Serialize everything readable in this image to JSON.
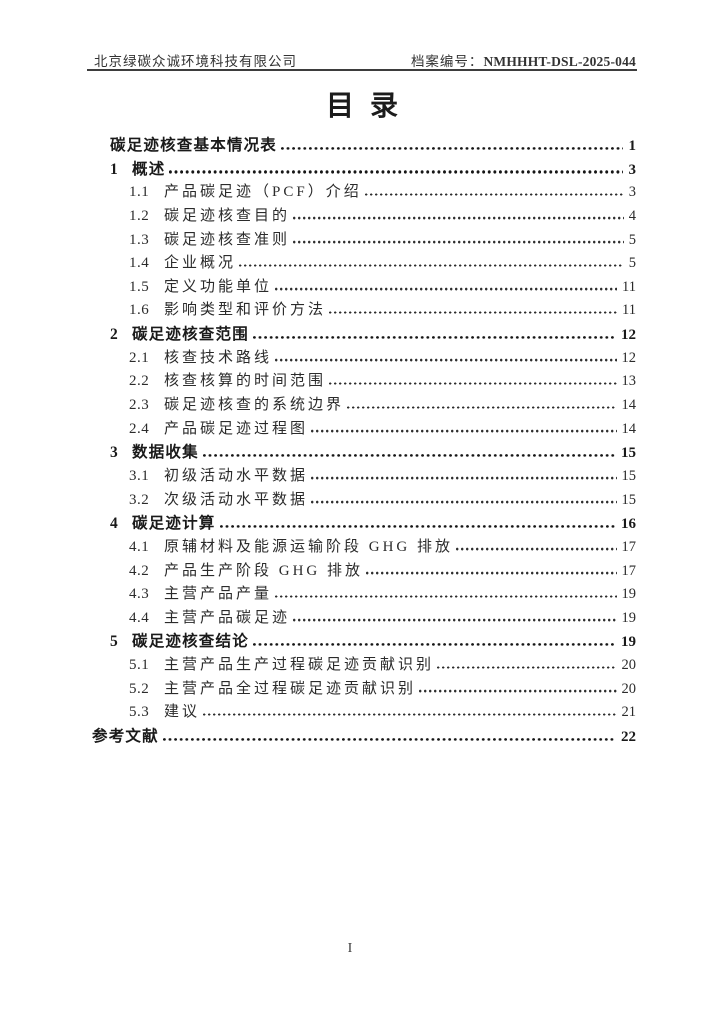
{
  "header": {
    "company": "北京绿碳众诚环境科技有限公司",
    "archive_label": "档案编号：",
    "archive_number": "NMHHHT-DSL-2025-044"
  },
  "title": "目录",
  "toc": {
    "entries": [
      {
        "num": "",
        "title": "碳足迹核查基本情况表",
        "page": "1",
        "level": 1,
        "bold": true
      },
      {
        "num": "1",
        "title": "概述",
        "page": "3",
        "level": 1,
        "bold": true
      },
      {
        "num": "1.1",
        "title": "产品碳足迹（PCF）介绍",
        "page": "3",
        "level": 2,
        "bold": false
      },
      {
        "num": "1.2",
        "title": "碳足迹核查目的",
        "page": "4",
        "level": 2,
        "bold": false
      },
      {
        "num": "1.3",
        "title": "碳足迹核查准则",
        "page": "5",
        "level": 2,
        "bold": false
      },
      {
        "num": "1.4",
        "title": "企业概况",
        "page": "5",
        "level": 2,
        "bold": false
      },
      {
        "num": "1.5",
        "title": "定义功能单位",
        "page": "11",
        "level": 2,
        "bold": false
      },
      {
        "num": "1.6",
        "title": "影响类型和评价方法",
        "page": "11",
        "level": 2,
        "bold": false
      },
      {
        "num": "2",
        "title": "碳足迹核查范围",
        "page": "12",
        "level": 1,
        "bold": true
      },
      {
        "num": "2.1",
        "title": "核查技术路线",
        "page": "12",
        "level": 2,
        "bold": false
      },
      {
        "num": "2.2",
        "title": "核查核算的时间范围",
        "page": "13",
        "level": 2,
        "bold": false
      },
      {
        "num": "2.3",
        "title": "碳足迹核查的系统边界",
        "page": "14",
        "level": 2,
        "bold": false
      },
      {
        "num": "2.4",
        "title": "产品碳足迹过程图",
        "page": "14",
        "level": 2,
        "bold": false
      },
      {
        "num": "3",
        "title": "数据收集",
        "page": "15",
        "level": 1,
        "bold": true
      },
      {
        "num": "3.1",
        "title": "初级活动水平数据",
        "page": "15",
        "level": 2,
        "bold": false
      },
      {
        "num": "3.2",
        "title": "次级活动水平数据",
        "page": "15",
        "level": 2,
        "bold": false
      },
      {
        "num": "4",
        "title": "碳足迹计算",
        "page": "16",
        "level": 1,
        "bold": true
      },
      {
        "num": "4.1",
        "title": "原辅材料及能源运输阶段 GHG 排放",
        "page": "17",
        "level": 2,
        "bold": false
      },
      {
        "num": "4.2",
        "title": "产品生产阶段 GHG 排放",
        "page": "17",
        "level": 2,
        "bold": false
      },
      {
        "num": "4.3",
        "title": "主营产品产量",
        "page": "19",
        "level": 2,
        "bold": false
      },
      {
        "num": "4.4",
        "title": "主营产品碳足迹",
        "page": "19",
        "level": 2,
        "bold": false
      },
      {
        "num": "5",
        "title": "碳足迹核查结论",
        "page": "19",
        "level": 1,
        "bold": true
      },
      {
        "num": "5.1",
        "title": "主营产品生产过程碳足迹贡献识别",
        "page": "20",
        "level": 2,
        "bold": false
      },
      {
        "num": "5.2",
        "title": "主营产品全过程碳足迹贡献识别",
        "page": "20",
        "level": 2,
        "bold": false
      },
      {
        "num": "5.3",
        "title": "建议",
        "page": "21",
        "level": 2,
        "bold": false
      },
      {
        "num": "",
        "title": "参考文献",
        "page": "22",
        "level": 0,
        "bold": true
      }
    ]
  },
  "footer": {
    "page_number": "I"
  }
}
